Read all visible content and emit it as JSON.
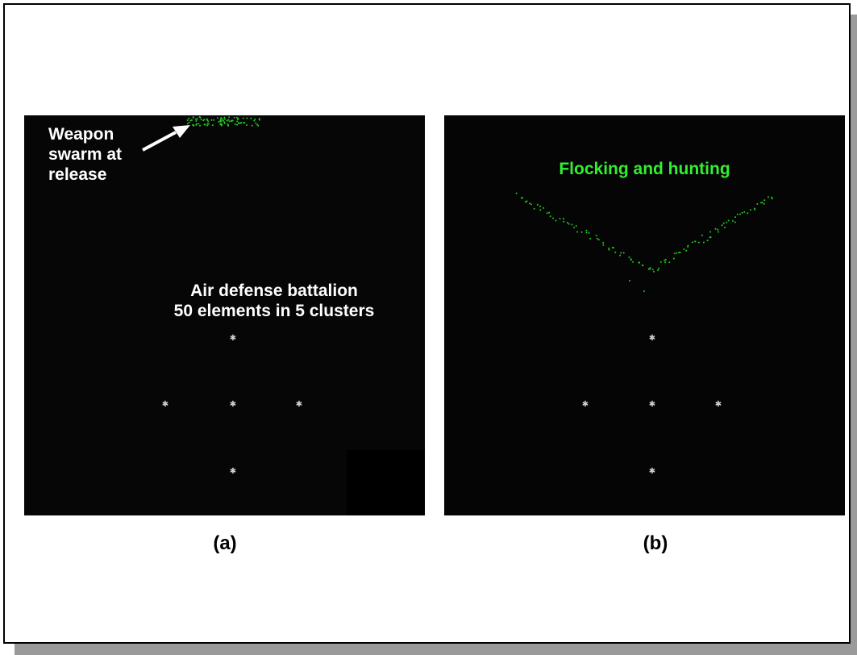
{
  "panel_a": {
    "weapon_label": "Weapon swarm at release",
    "battalion_line1": "Air defense battalion",
    "battalion_line2": "50 elements in 5 clusters",
    "caption": "(a)"
  },
  "panel_b": {
    "flocking_label": "Flocking and hunting",
    "caption": "(b)"
  },
  "colors": {
    "panel_background": "#060606",
    "swarm": "#22cc22",
    "label_green": "#33ee33",
    "target": "#d0d0d0",
    "arrow": "#ffffff"
  }
}
